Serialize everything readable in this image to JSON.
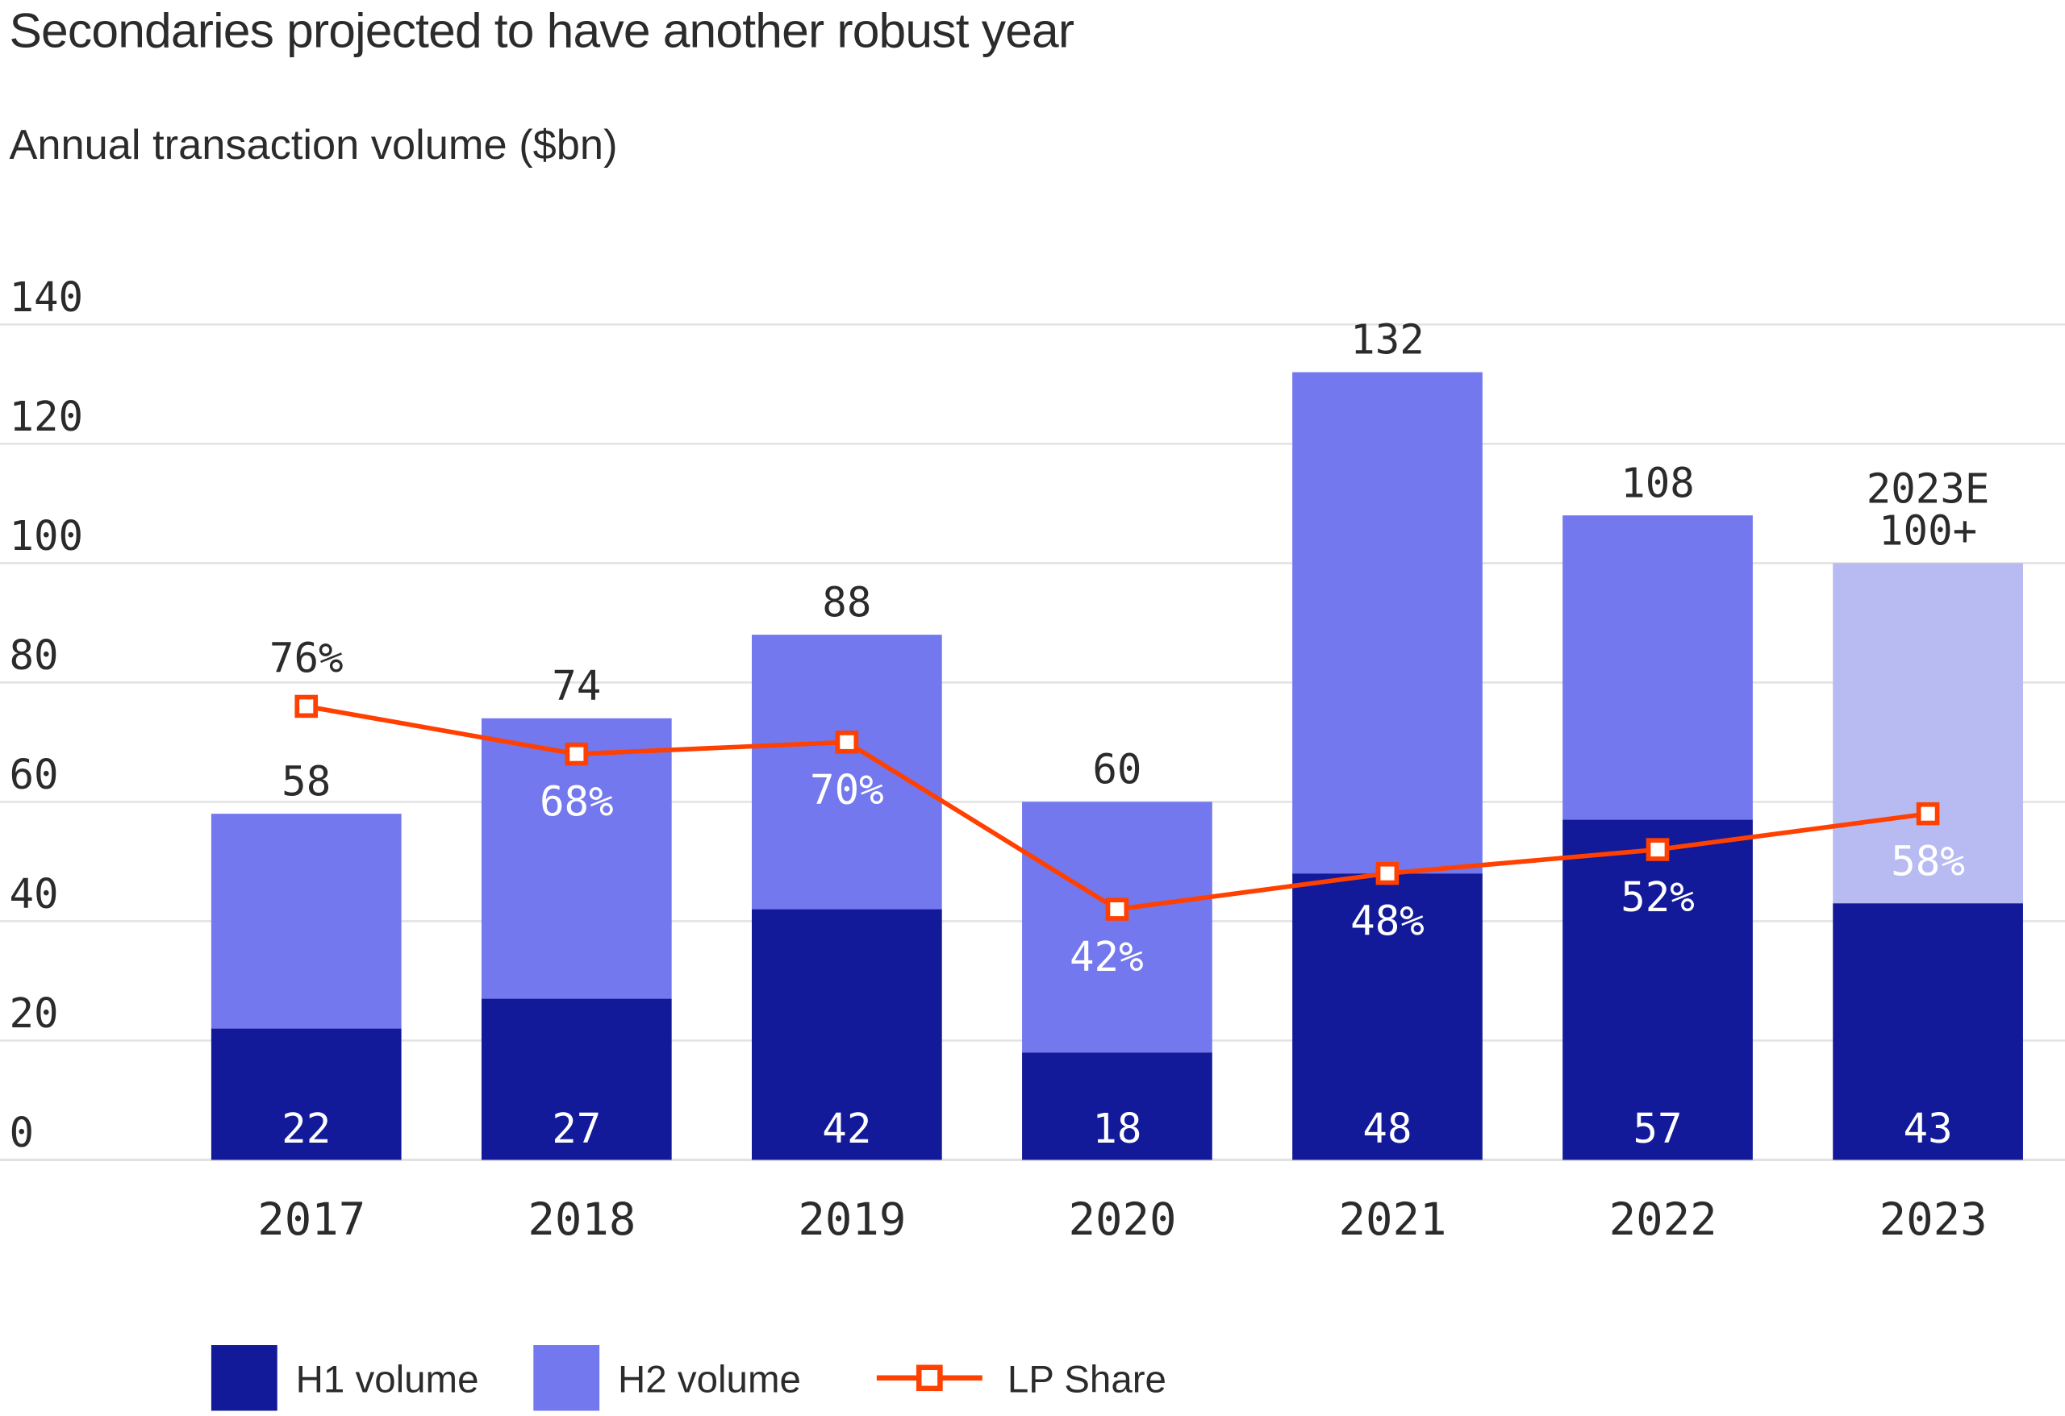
{
  "chart_data": {
    "type": "bar",
    "stacked": true,
    "title": "Secondaries projected to have another robust year",
    "subtitle": "Annual transaction volume ($bn)",
    "categories": [
      "2017",
      "2018",
      "2019",
      "2020",
      "2021",
      "2022",
      "2023"
    ],
    "ylim": [
      0,
      140
    ],
    "yticks": [
      0,
      20,
      40,
      60,
      80,
      100,
      120,
      140
    ],
    "grid": true,
    "legend_position": "bottom-left",
    "series": [
      {
        "name": "H1 volume",
        "values": [
          22,
          27,
          42,
          18,
          48,
          57,
          43
        ],
        "color": "#131A99"
      },
      {
        "name": "H2 volume",
        "values": [
          36,
          47,
          46,
          42,
          84,
          51,
          57
        ],
        "color": "#7378EE",
        "estimate_color": "#B8BAF2"
      },
      {
        "name": "LP Share",
        "type": "line",
        "values": [
          76,
          68,
          70,
          42,
          48,
          52,
          58
        ],
        "unit": "%",
        "color": "#FF4000"
      }
    ],
    "totals": [
      58,
      74,
      88,
      60,
      132,
      108,
      100
    ],
    "total_labels": [
      "58",
      "74",
      "88",
      "60",
      "132",
      "108",
      "100+"
    ],
    "estimate_label": "2023E"
  }
}
